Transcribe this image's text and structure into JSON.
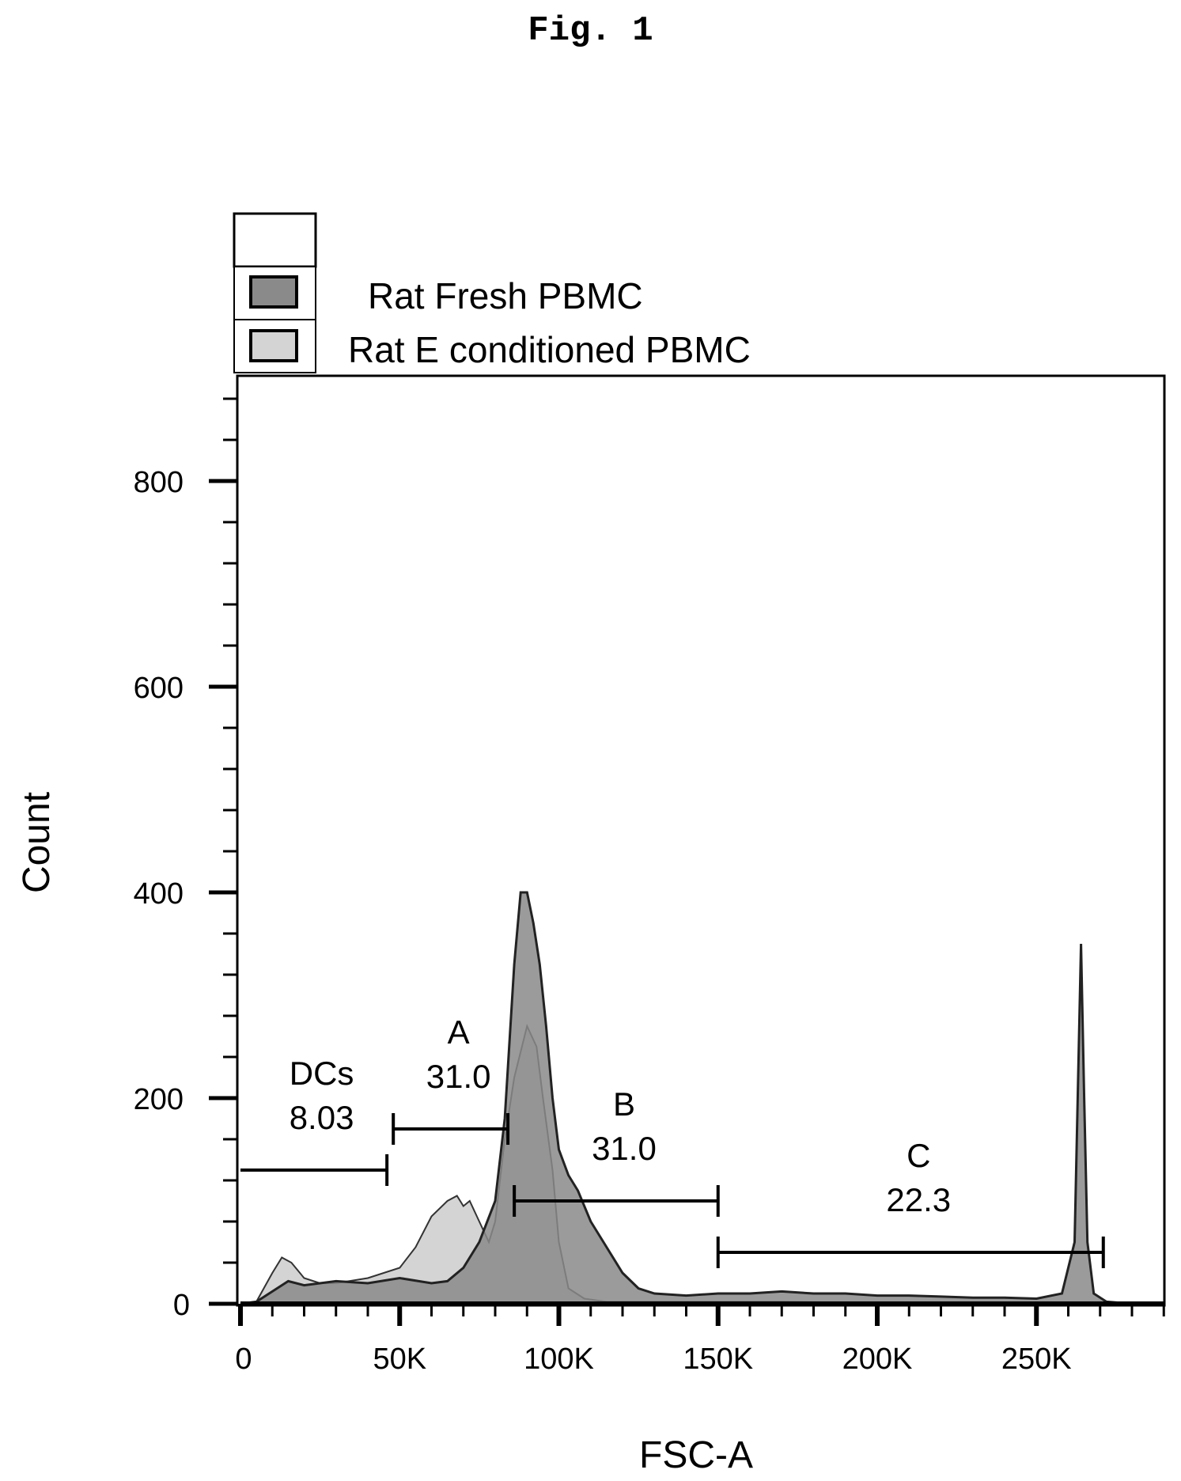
{
  "figure_label": "Fig. 1",
  "colors": {
    "fresh_fill": "#8a8a8a",
    "conditioned_fill": "#d4d4d4",
    "axis": "#000000"
  },
  "chart_data": {
    "type": "area",
    "title": "",
    "xlabel": "FSC-A",
    "ylabel": "Count",
    "xlim": [
      0,
      290000
    ],
    "ylim": [
      0,
      880
    ],
    "x_ticks": [
      {
        "value": 0,
        "label": "0"
      },
      {
        "value": 50000,
        "label": "50K"
      },
      {
        "value": 100000,
        "label": "100K"
      },
      {
        "value": 150000,
        "label": "150K"
      },
      {
        "value": 200000,
        "label": "200K"
      },
      {
        "value": 250000,
        "label": "250K"
      }
    ],
    "y_ticks": [
      {
        "value": 0,
        "label": "0"
      },
      {
        "value": 200,
        "label": "200"
      },
      {
        "value": 400,
        "label": "400"
      },
      {
        "value": 600,
        "label": "600"
      },
      {
        "value": 800,
        "label": "800"
      }
    ],
    "legend": {
      "placement": "top-left",
      "entries": [
        "Rat Fresh PBMC",
        "Rat E conditioned PBMC"
      ]
    },
    "series": [
      {
        "name": "Rat Fresh PBMC",
        "color": "#8a8a8a",
        "x": [
          0,
          5000,
          10000,
          15000,
          20000,
          30000,
          40000,
          50000,
          60000,
          65000,
          70000,
          75000,
          80000,
          83000,
          86000,
          88000,
          90000,
          92000,
          94000,
          96000,
          98000,
          100000,
          103000,
          106000,
          110000,
          115000,
          120000,
          125000,
          130000,
          140000,
          150000,
          160000,
          170000,
          180000,
          190000,
          200000,
          210000,
          220000,
          230000,
          240000,
          250000,
          258000,
          262000,
          264000,
          265000,
          266000,
          268000,
          272000,
          280000
        ],
        "y": [
          0,
          2,
          12,
          22,
          18,
          22,
          20,
          25,
          20,
          22,
          35,
          60,
          100,
          180,
          330,
          400,
          400,
          370,
          330,
          270,
          200,
          150,
          125,
          110,
          80,
          55,
          30,
          15,
          10,
          8,
          10,
          10,
          12,
          10,
          10,
          8,
          8,
          7,
          6,
          6,
          5,
          10,
          60,
          350,
          200,
          60,
          10,
          2,
          0
        ]
      },
      {
        "name": "Rat E conditioned PBMC",
        "color": "#d4d4d4",
        "x": [
          0,
          5000,
          10000,
          13000,
          16000,
          20000,
          25000,
          30000,
          40000,
          50000,
          55000,
          60000,
          65000,
          68000,
          70000,
          72000,
          75000,
          78000,
          80000,
          83000,
          86000,
          90000,
          93000,
          95000,
          98000,
          100000,
          103000,
          108000,
          115000,
          130000,
          150000,
          170000,
          200000,
          230000,
          260000,
          270000
        ],
        "y": [
          0,
          2,
          30,
          45,
          40,
          25,
          20,
          20,
          25,
          35,
          55,
          85,
          100,
          105,
          95,
          100,
          80,
          60,
          80,
          160,
          220,
          270,
          250,
          200,
          130,
          60,
          15,
          5,
          2,
          2,
          2,
          2,
          1,
          1,
          1,
          0
        ]
      }
    ],
    "gates": [
      {
        "name": "DCs",
        "value": "8.03",
        "x_start": 0,
        "x_end": 46000,
        "level": 130
      },
      {
        "name": "A",
        "value": "31.0",
        "x_start": 48000,
        "x_end": 84000,
        "level": 170
      },
      {
        "name": "B",
        "value": "31.0",
        "x_start": 86000,
        "x_end": 150000,
        "level": 100
      },
      {
        "name": "C",
        "value": "22.3",
        "x_start": 150000,
        "x_end": 271000,
        "level": 50
      }
    ]
  }
}
